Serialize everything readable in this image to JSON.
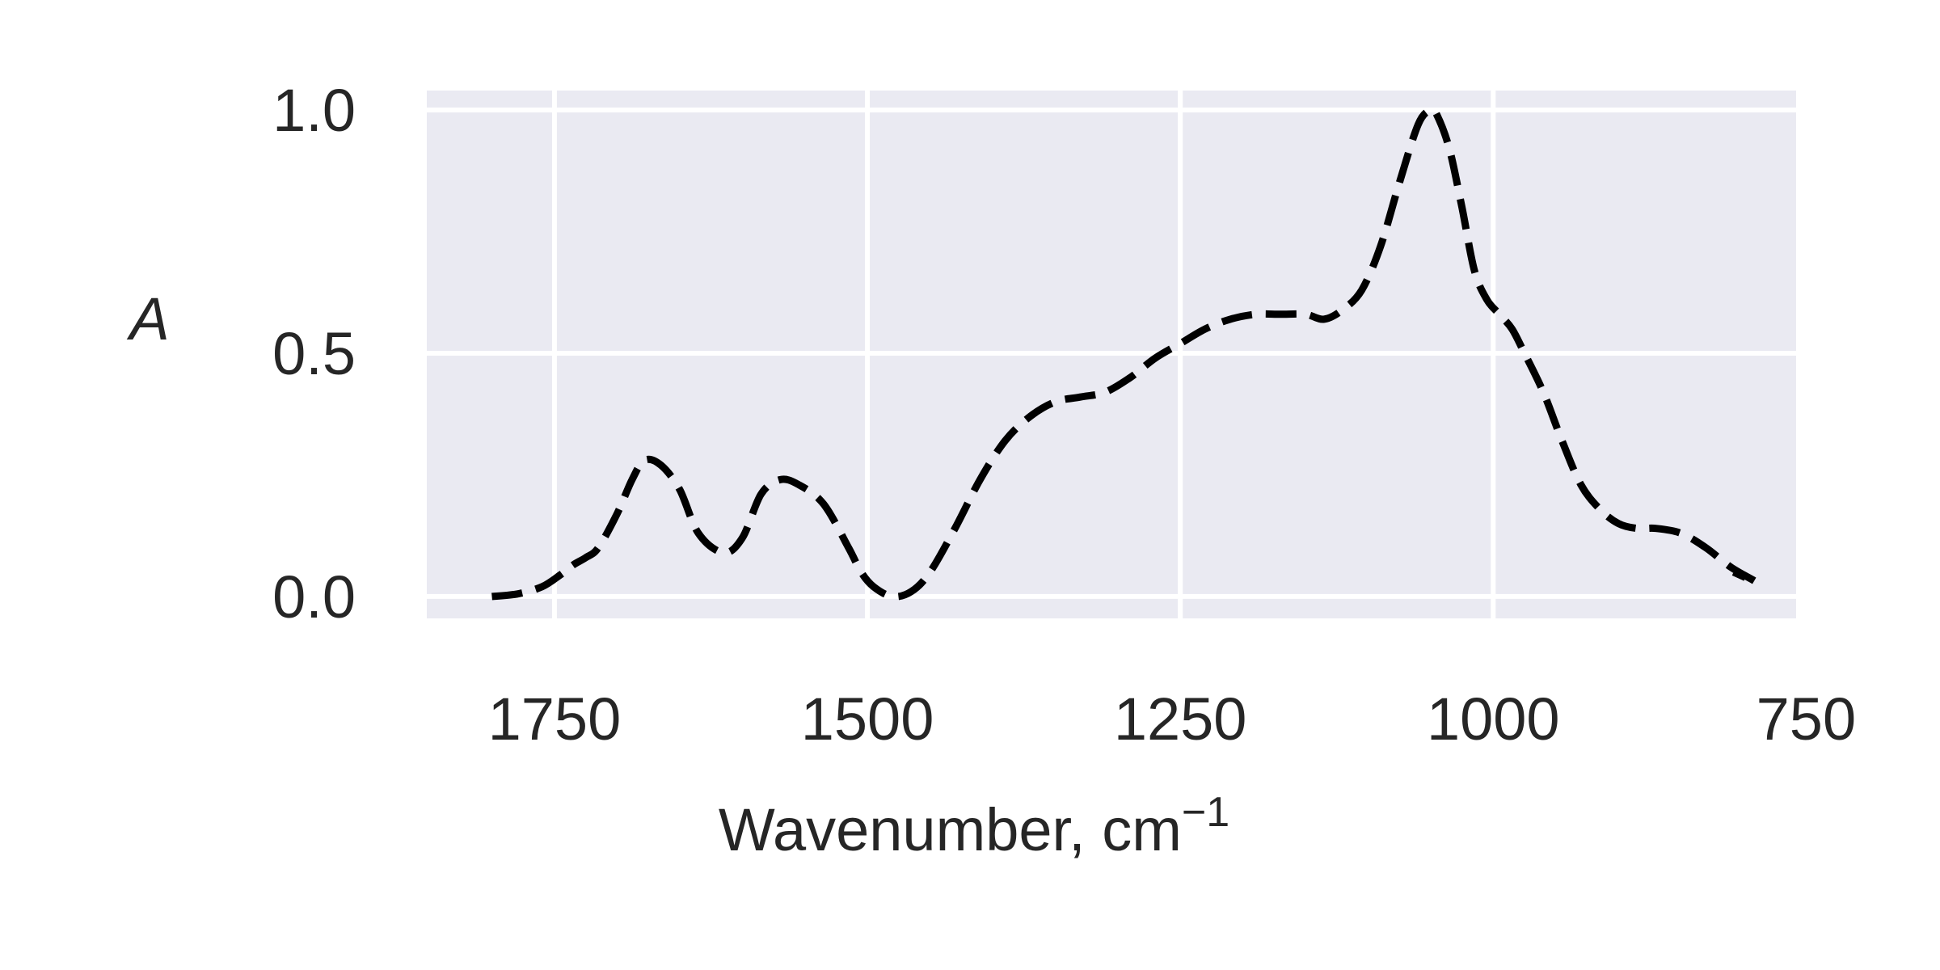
{
  "chart_data": {
    "type": "line",
    "title": "",
    "xlabel": "Wavenumber, cm",
    "xlabel_superscript": "−1",
    "ylabel": "A",
    "x_reversed": true,
    "xlim": [
      1852,
      758
    ],
    "ylim": [
      -0.045,
      1.04
    ],
    "xticks": [
      1750,
      1500,
      1250,
      1000,
      750
    ],
    "xtick_labels": [
      "1750",
      "1500",
      "1250",
      "1000",
      "750"
    ],
    "yticks": [
      0.0,
      0.5,
      1.0
    ],
    "ytick_labels": [
      "0.0",
      "0.5",
      "1.0"
    ],
    "grid": true,
    "background": "#eaeaf2",
    "grid_color": "#ffffff",
    "series": [
      {
        "line_style": "dashed",
        "color": "#000000",
        "x": [
          1800,
          1780,
          1760,
          1745,
          1735,
          1725,
          1715,
          1700,
          1688,
          1678,
          1665,
          1650,
          1635,
          1615,
          1600,
          1585,
          1570,
          1555,
          1535,
          1515,
          1505,
          1495,
          1480,
          1465,
          1450,
          1430,
          1410,
          1390,
          1370,
          1350,
          1330,
          1310,
          1290,
          1270,
          1250,
          1230,
          1210,
          1190,
          1170,
          1150,
          1135,
          1120,
          1105,
          1090,
          1075,
          1060,
          1050,
          1045,
          1035,
          1025,
          1015,
          1005,
          995,
          985,
          975,
          960,
          945,
          930,
          915,
          900,
          885,
          870,
          850,
          830,
          810,
          790,
          808
        ],
        "y": [
          0.0,
          0.005,
          0.02,
          0.045,
          0.065,
          0.08,
          0.1,
          0.17,
          0.24,
          0.28,
          0.27,
          0.22,
          0.13,
          0.09,
          0.12,
          0.21,
          0.24,
          0.23,
          0.19,
          0.1,
          0.05,
          0.02,
          0.0,
          0.01,
          0.05,
          0.14,
          0.24,
          0.32,
          0.37,
          0.4,
          0.41,
          0.42,
          0.45,
          0.49,
          0.52,
          0.55,
          0.57,
          0.58,
          0.58,
          0.58,
          0.57,
          0.59,
          0.63,
          0.72,
          0.85,
          0.97,
          1.0,
          0.99,
          0.92,
          0.8,
          0.67,
          0.61,
          0.58,
          0.55,
          0.5,
          0.42,
          0.32,
          0.23,
          0.18,
          0.15,
          0.14,
          0.14,
          0.13,
          0.1,
          0.06,
          0.03,
          0.05
        ]
      }
    ]
  }
}
